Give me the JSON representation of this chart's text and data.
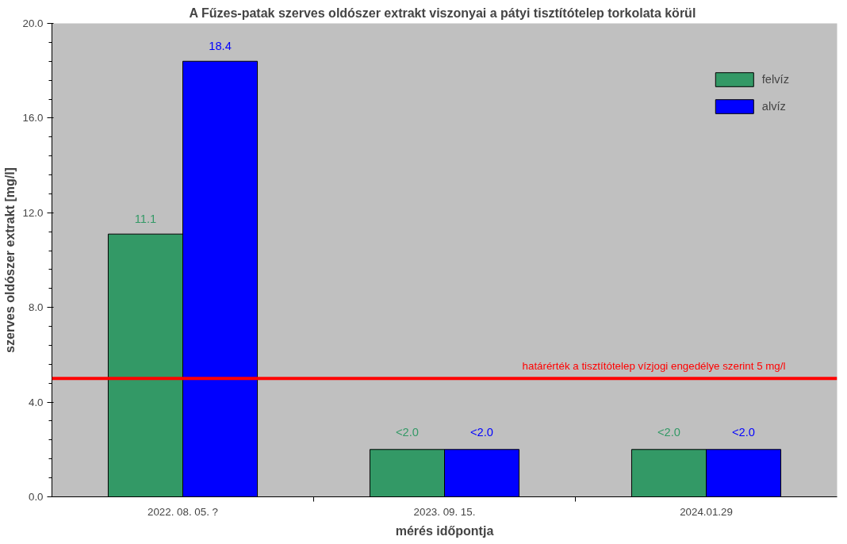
{
  "chart_data": {
    "type": "bar",
    "title": "A Fűzes-patak szerves oldószer extrakt viszonyai a pátyi tisztítótelep torkolata  körül",
    "xlabel": "mérés időpontja",
    "ylabel": "szerves oldószer extrakt [mg/l]",
    "categories": [
      "2022. 08. 05. ?",
      "2023. 09. 15.",
      "2024.01.29"
    ],
    "series": [
      {
        "name": "felvíz",
        "color": "#339966",
        "values": [
          11.1,
          2.0,
          2.0
        ],
        "value_labels": [
          "11.1",
          "<2.0",
          "<2.0"
        ]
      },
      {
        "name": "alvíz",
        "color": "#0000ff",
        "values": [
          18.4,
          2.0,
          2.0
        ],
        "value_labels": [
          "18.4",
          "<2.0",
          "<2.0"
        ]
      }
    ],
    "ylim": [
      0,
      20
    ],
    "yticks": [
      {
        "value": 0,
        "label": "0.0"
      },
      {
        "value": 4,
        "label": "4.0"
      },
      {
        "value": 8,
        "label": "8.0"
      },
      {
        "value": 12,
        "label": "12.0"
      },
      {
        "value": 16,
        "label": "16.0"
      },
      {
        "value": 20,
        "label": "20.0"
      }
    ],
    "ref_lines": [
      {
        "axis": "y",
        "value": 5,
        "label": "határérték a tisztítótelep vízjogi engedélye szerint 5 mg/l",
        "color": "#ff0000"
      }
    ],
    "legend": "top right",
    "grid": false
  }
}
